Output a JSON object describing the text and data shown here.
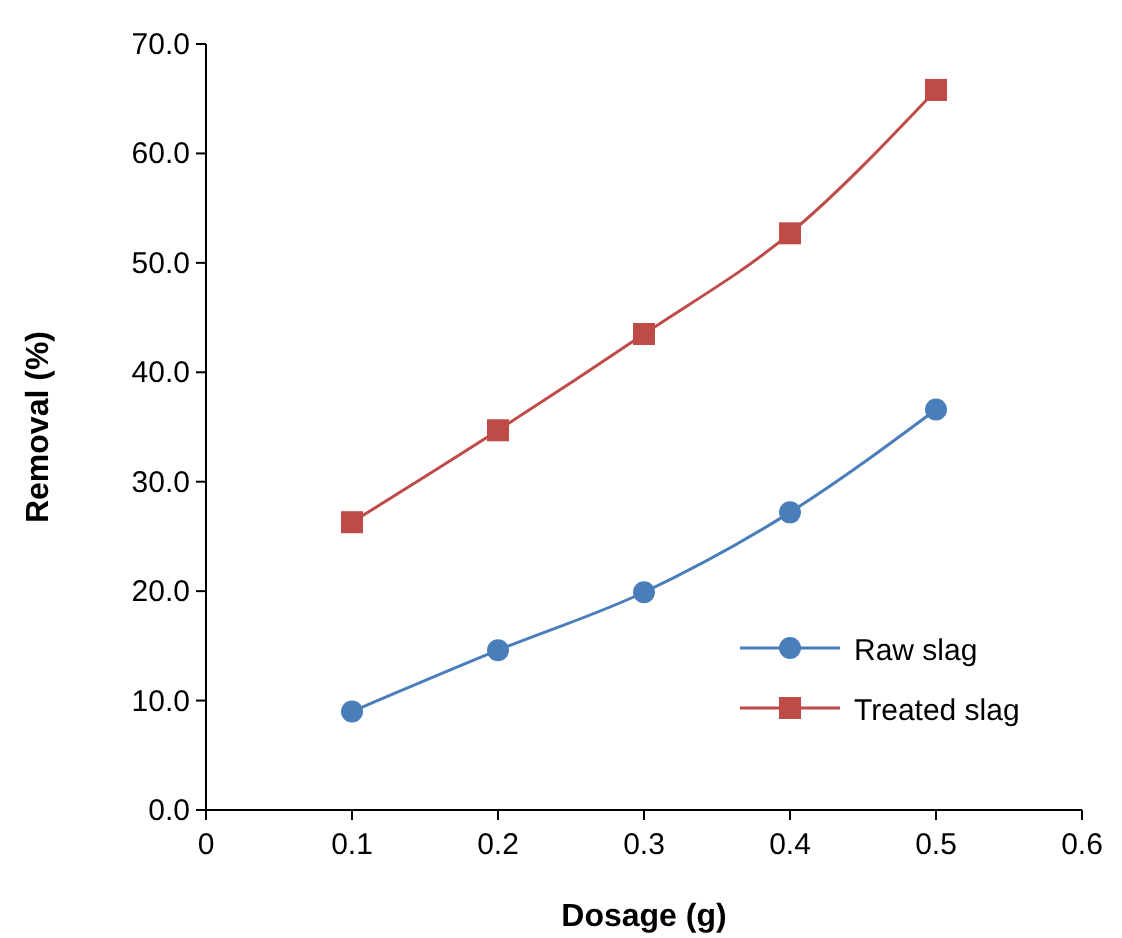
{
  "chart_data": {
    "type": "line",
    "xlabel": "Dosage (g)",
    "ylabel": "Removal (%)",
    "xlim": [
      0,
      0.6
    ],
    "xticks": [
      0,
      0.1,
      0.2,
      0.3,
      0.4,
      0.5,
      0.6
    ],
    "ylim": [
      0,
      70
    ],
    "yticks": [
      {
        "value": 0,
        "label": "0.0"
      },
      {
        "value": 10,
        "label": "10.0"
      },
      {
        "value": 20,
        "label": "20.0"
      },
      {
        "value": 30,
        "label": "30.0"
      },
      {
        "value": 40,
        "label": "40.0"
      },
      {
        "value": 50,
        "label": "50.0"
      },
      {
        "value": 60,
        "label": "60.0"
      },
      {
        "value": 70,
        "label": "70.0"
      }
    ],
    "x": [
      0.1,
      0.2,
      0.3,
      0.4,
      0.5
    ],
    "series": [
      {
        "name": "Raw slag",
        "color": "#4a7ebb",
        "marker": "circle",
        "values": [
          9.0,
          14.6,
          19.9,
          27.2,
          36.6
        ]
      },
      {
        "name": "Treated slag",
        "color": "#be4b48",
        "marker": "square",
        "values": [
          26.3,
          34.7,
          43.5,
          52.7,
          65.8
        ]
      }
    ],
    "grid": false,
    "legend": "bottom right",
    "line_style": "solid"
  }
}
